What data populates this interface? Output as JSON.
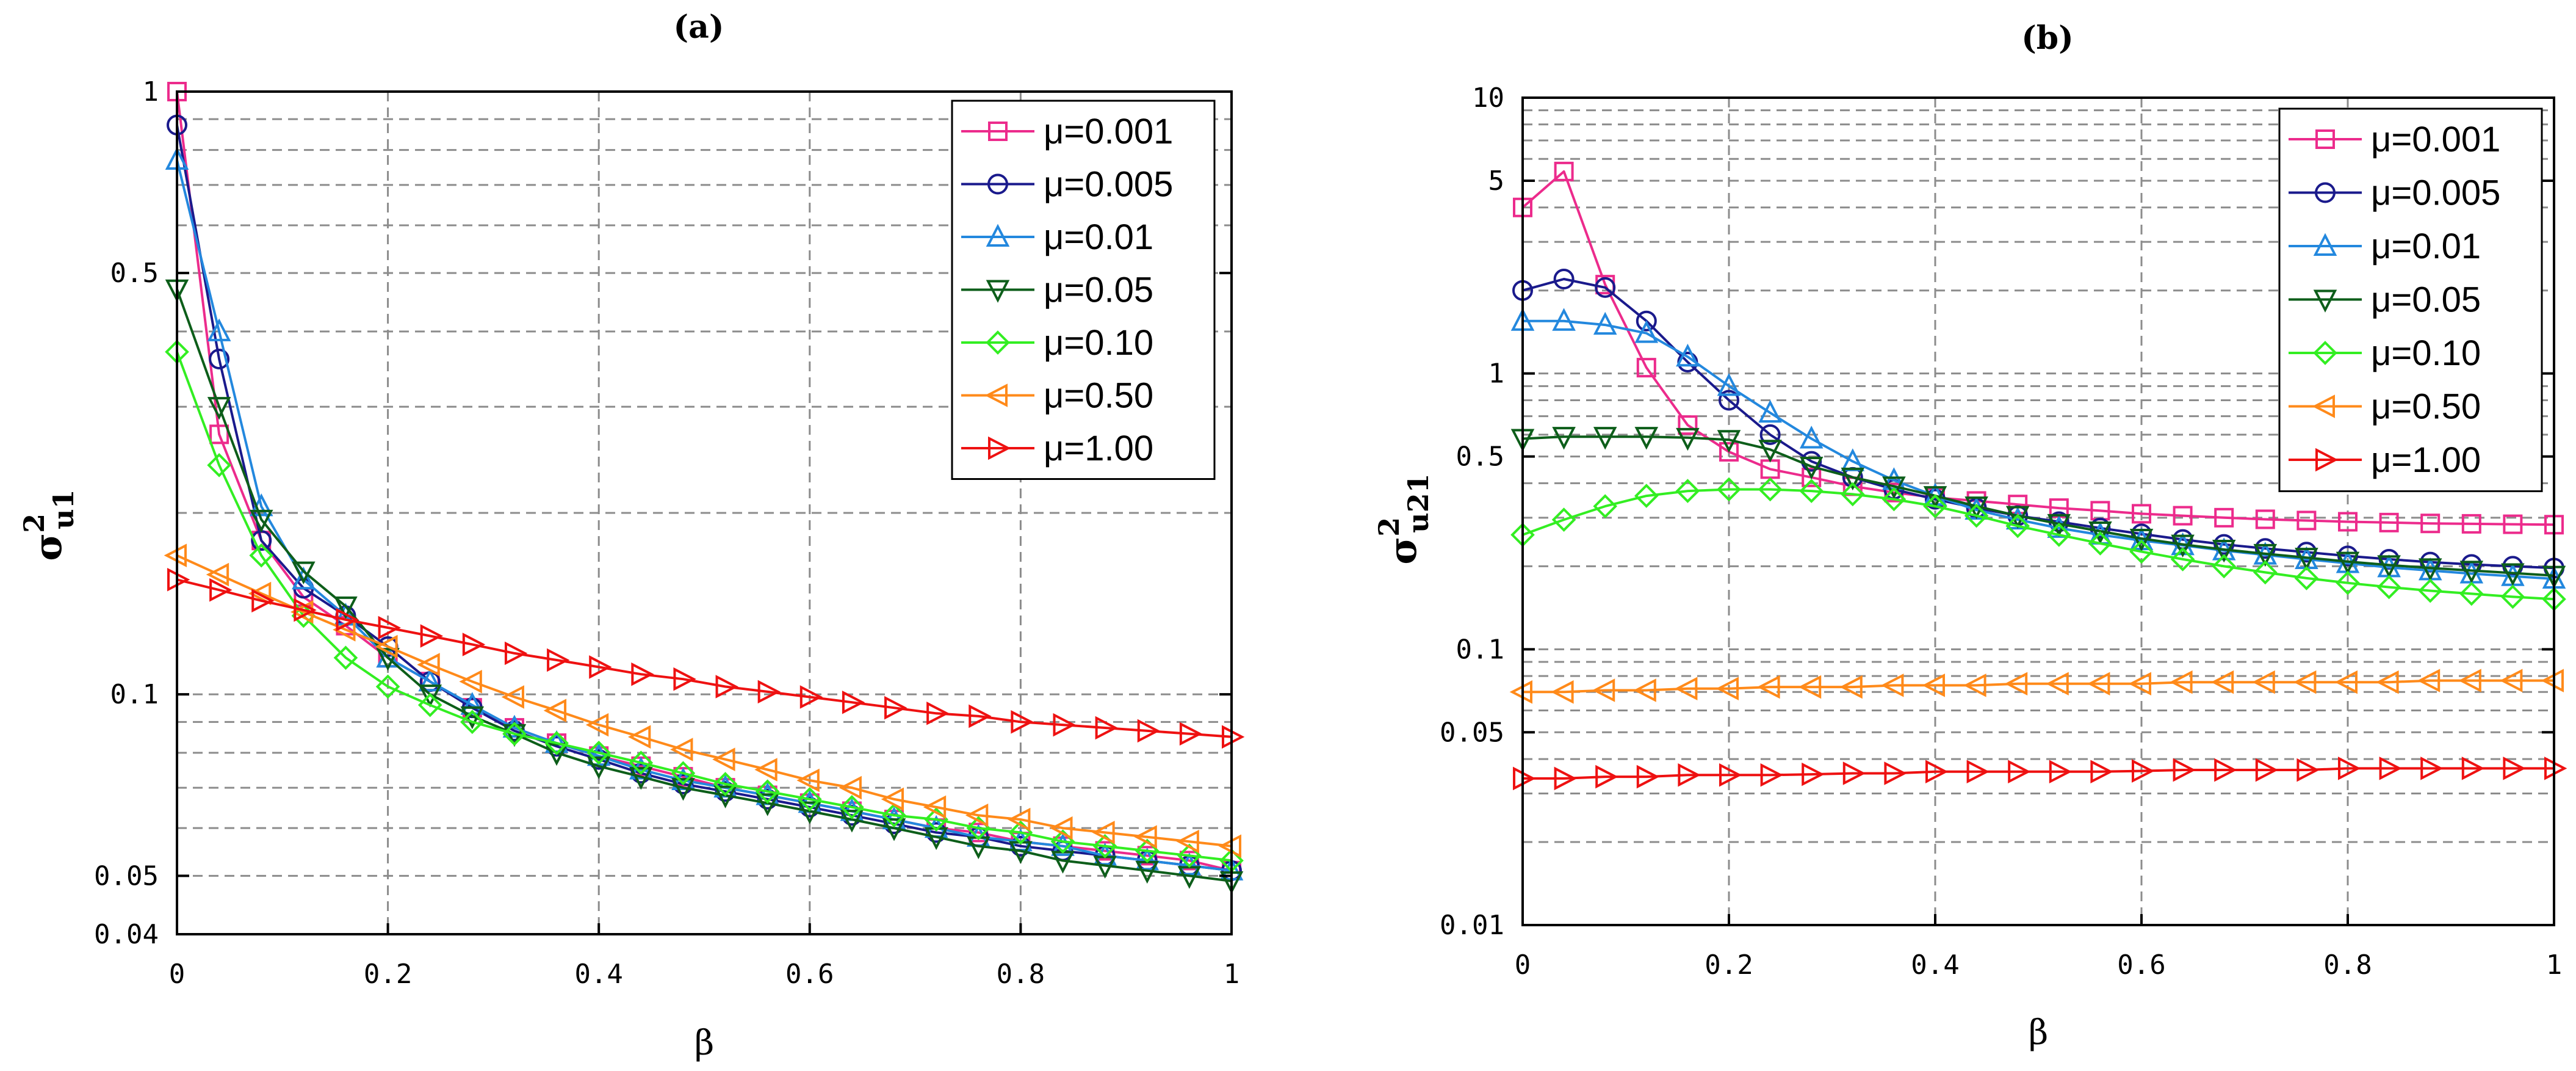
{
  "chart_data": [
    {
      "type": "line",
      "title": "(a)",
      "xlabel": "β",
      "ylabel": "σ",
      "ylabel_sup": "2",
      "ylabel_sub": "u1",
      "yscale": "log",
      "xlim": [
        0,
        1
      ],
      "ylim": [
        0.04,
        1
      ],
      "x_ticks": [
        "0",
        "0.2",
        "0.4",
        "0.6",
        "0.8",
        "1"
      ],
      "y_ticks": [
        {
          "v": 0.04,
          "label": "0.04"
        },
        {
          "v": 0.05,
          "label": "0.05"
        },
        {
          "v": 0.1,
          "label": "0.1"
        },
        {
          "v": 0.5,
          "label": "0.5"
        },
        {
          "v": 1,
          "label": "1"
        }
      ],
      "grid": true,
      "legend_position": "top-right",
      "x": [
        0,
        0.04,
        0.08,
        0.12,
        0.16,
        0.2,
        0.24,
        0.28,
        0.32,
        0.36,
        0.4,
        0.44,
        0.48,
        0.52,
        0.56,
        0.6,
        0.64,
        0.68,
        0.72,
        0.76,
        0.8,
        0.84,
        0.88,
        0.92,
        0.96,
        1.0
      ],
      "series": [
        {
          "name": "μ=0.001",
          "color": "#ec2b8c",
          "marker": "square",
          "values": [
            1.0,
            0.27,
            0.18,
            0.145,
            0.13,
            0.115,
            0.105,
            0.095,
            0.088,
            0.083,
            0.079,
            0.076,
            0.073,
            0.07,
            0.068,
            0.066,
            0.064,
            0.062,
            0.06,
            0.059,
            0.057,
            0.056,
            0.055,
            0.054,
            0.053,
            0.051
          ]
        },
        {
          "name": "μ=0.005",
          "color": "#1a1a8c",
          "marker": "circle",
          "values": [
            0.88,
            0.36,
            0.18,
            0.15,
            0.135,
            0.12,
            0.105,
            0.095,
            0.087,
            0.082,
            0.078,
            0.074,
            0.071,
            0.069,
            0.067,
            0.065,
            0.063,
            0.061,
            0.059,
            0.058,
            0.056,
            0.055,
            0.054,
            0.053,
            0.052,
            0.051
          ]
        },
        {
          "name": "μ=0.01",
          "color": "#2388de",
          "marker": "triangle-up",
          "values": [
            0.77,
            0.4,
            0.205,
            0.155,
            0.135,
            0.115,
            0.105,
            0.096,
            0.088,
            0.083,
            0.079,
            0.075,
            0.072,
            0.07,
            0.068,
            0.066,
            0.064,
            0.062,
            0.06,
            0.058,
            0.057,
            0.056,
            0.054,
            0.053,
            0.052,
            0.051
          ]
        },
        {
          "name": "μ=0.05",
          "color": "#0d5e1a",
          "marker": "triangle-down",
          "values": [
            0.47,
            0.3,
            0.195,
            0.16,
            0.14,
            0.115,
            0.1,
            0.092,
            0.086,
            0.08,
            0.076,
            0.073,
            0.07,
            0.068,
            0.066,
            0.064,
            0.062,
            0.06,
            0.058,
            0.056,
            0.055,
            0.053,
            0.052,
            0.051,
            0.05,
            0.049
          ]
        },
        {
          "name": "μ=0.10",
          "color": "#33ee22",
          "marker": "diamond",
          "values": [
            0.37,
            0.24,
            0.17,
            0.135,
            0.115,
            0.103,
            0.096,
            0.09,
            0.086,
            0.083,
            0.08,
            0.077,
            0.074,
            0.071,
            0.069,
            0.067,
            0.065,
            0.063,
            0.062,
            0.06,
            0.059,
            0.057,
            0.056,
            0.055,
            0.054,
            0.053
          ]
        },
        {
          "name": "μ=0.50",
          "color": "#ff8a1a",
          "marker": "triangle-left",
          "values": [
            0.17,
            0.158,
            0.147,
            0.137,
            0.128,
            0.12,
            0.112,
            0.105,
            0.099,
            0.094,
            0.089,
            0.085,
            0.081,
            0.078,
            0.075,
            0.072,
            0.07,
            0.067,
            0.065,
            0.063,
            0.062,
            0.06,
            0.059,
            0.058,
            0.057,
            0.056
          ]
        },
        {
          "name": "μ=1.00",
          "color": "#ee1111",
          "marker": "triangle-right",
          "values": [
            0.155,
            0.149,
            0.143,
            0.138,
            0.133,
            0.129,
            0.125,
            0.121,
            0.117,
            0.114,
            0.111,
            0.108,
            0.106,
            0.103,
            0.101,
            0.099,
            0.097,
            0.095,
            0.093,
            0.092,
            0.09,
            0.089,
            0.088,
            0.087,
            0.086,
            0.085
          ]
        }
      ]
    },
    {
      "type": "line",
      "title": "(b)",
      "xlabel": "β",
      "ylabel": "σ",
      "ylabel_sup": "2",
      "ylabel_sub": "u21",
      "yscale": "log",
      "xlim": [
        0,
        1
      ],
      "ylim": [
        0.01,
        10
      ],
      "x_ticks": [
        "0",
        "0.2",
        "0.4",
        "0.6",
        "0.8",
        "1"
      ],
      "y_ticks": [
        {
          "v": 0.01,
          "label": "0.01"
        },
        {
          "v": 0.05,
          "label": "0.05"
        },
        {
          "v": 0.1,
          "label": "0.1"
        },
        {
          "v": 0.5,
          "label": "0.5"
        },
        {
          "v": 1,
          "label": "1"
        },
        {
          "v": 5,
          "label": "5"
        },
        {
          "v": 10,
          "label": "10"
        }
      ],
      "grid": true,
      "legend_position": "top-right",
      "x": [
        0,
        0.04,
        0.08,
        0.12,
        0.16,
        0.2,
        0.24,
        0.28,
        0.32,
        0.36,
        0.4,
        0.44,
        0.48,
        0.52,
        0.56,
        0.6,
        0.64,
        0.68,
        0.72,
        0.76,
        0.8,
        0.84,
        0.88,
        0.92,
        0.96,
        1.0
      ],
      "series": [
        {
          "name": "μ=0.001",
          "color": "#ec2b8c",
          "marker": "square",
          "values": [
            4.0,
            5.4,
            2.1,
            1.05,
            0.65,
            0.52,
            0.45,
            0.42,
            0.39,
            0.37,
            0.355,
            0.345,
            0.335,
            0.325,
            0.318,
            0.31,
            0.305,
            0.3,
            0.296,
            0.293,
            0.29,
            0.288,
            0.286,
            0.285,
            0.284,
            0.283
          ]
        },
        {
          "name": "μ=0.005",
          "color": "#1a1a8c",
          "marker": "circle",
          "values": [
            2.0,
            2.2,
            2.05,
            1.55,
            1.1,
            0.8,
            0.6,
            0.48,
            0.42,
            0.38,
            0.35,
            0.325,
            0.305,
            0.29,
            0.275,
            0.262,
            0.25,
            0.24,
            0.232,
            0.225,
            0.218,
            0.212,
            0.207,
            0.203,
            0.2,
            0.197
          ]
        },
        {
          "name": "μ=0.01",
          "color": "#2388de",
          "marker": "triangle-up",
          "values": [
            1.55,
            1.55,
            1.5,
            1.4,
            1.15,
            0.9,
            0.72,
            0.58,
            0.48,
            0.41,
            0.36,
            0.32,
            0.295,
            0.275,
            0.26,
            0.248,
            0.238,
            0.228,
            0.22,
            0.212,
            0.205,
            0.198,
            0.193,
            0.188,
            0.184,
            0.18
          ]
        },
        {
          "name": "μ=0.05",
          "color": "#0d5e1a",
          "marker": "triangle-down",
          "values": [
            0.58,
            0.59,
            0.59,
            0.59,
            0.585,
            0.575,
            0.53,
            0.46,
            0.42,
            0.39,
            0.36,
            0.33,
            0.305,
            0.285,
            0.268,
            0.252,
            0.24,
            0.23,
            0.222,
            0.215,
            0.208,
            0.202,
            0.197,
            0.193,
            0.189,
            0.185
          ]
        },
        {
          "name": "μ=0.10",
          "color": "#33ee22",
          "marker": "diamond",
          "values": [
            0.26,
            0.295,
            0.33,
            0.36,
            0.375,
            0.38,
            0.38,
            0.375,
            0.365,
            0.35,
            0.33,
            0.305,
            0.28,
            0.26,
            0.242,
            0.226,
            0.212,
            0.2,
            0.19,
            0.181,
            0.174,
            0.168,
            0.163,
            0.159,
            0.155,
            0.152
          ]
        },
        {
          "name": "μ=0.50",
          "color": "#ff8a1a",
          "marker": "triangle-left",
          "values": [
            0.07,
            0.07,
            0.071,
            0.071,
            0.072,
            0.072,
            0.073,
            0.073,
            0.073,
            0.074,
            0.074,
            0.074,
            0.075,
            0.075,
            0.075,
            0.075,
            0.076,
            0.076,
            0.076,
            0.076,
            0.076,
            0.076,
            0.077,
            0.077,
            0.077,
            0.077
          ]
        },
        {
          "name": "μ=1.00",
          "color": "#ee1111",
          "marker": "triangle-right",
          "values": [
            0.034,
            0.034,
            0.0345,
            0.0345,
            0.035,
            0.035,
            0.035,
            0.0352,
            0.0355,
            0.0355,
            0.036,
            0.036,
            0.036,
            0.036,
            0.036,
            0.0362,
            0.0365,
            0.0365,
            0.0365,
            0.0365,
            0.037,
            0.037,
            0.037,
            0.037,
            0.037,
            0.037
          ]
        }
      ]
    }
  ]
}
